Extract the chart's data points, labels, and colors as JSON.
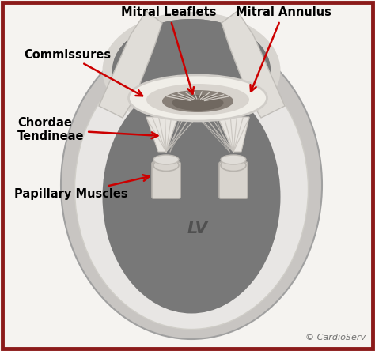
{
  "bg_color": "#f5f3f0",
  "border_color": "#8b1a1a",
  "arrow_color": "#cc0000",
  "labels": {
    "mitral_leaflets": "Mitral Leaflets",
    "mitral_annulus": "Mitral Annulus",
    "commissures": "Commissures",
    "chordae": "Chordae\nTendineae",
    "papillary": "Papillary Muscles"
  },
  "lv_text": "LV",
  "copyright": "© CardioServ",
  "label_fontsize": 10.5,
  "lv_fontsize": 15
}
